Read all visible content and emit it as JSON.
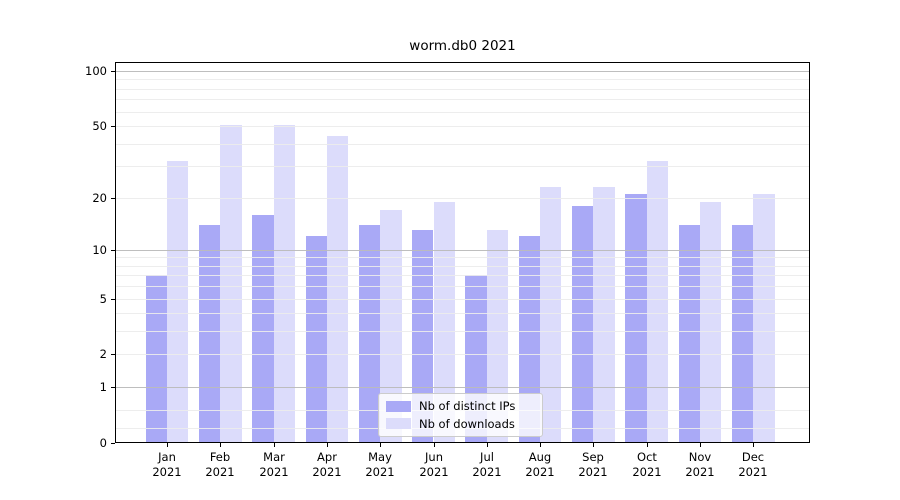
{
  "title": "worm.db0 2021",
  "legend": {
    "position": "lower center",
    "items": [
      {
        "label": "Nb of distinct IPs",
        "color": "#a9a9f6"
      },
      {
        "label": "Nb of downloads",
        "color": "#dcdcfb"
      }
    ]
  },
  "chart_data": {
    "type": "bar",
    "title": "worm.db0 2021",
    "categories": [
      "Jan 2021",
      "Feb 2021",
      "Mar 2021",
      "Apr 2021",
      "May 2021",
      "Jun 2021",
      "Jul 2021",
      "Aug 2021",
      "Sep 2021",
      "Oct 2021",
      "Nov 2021",
      "Dec 2021"
    ],
    "series": [
      {
        "name": "Nb of distinct IPs",
        "color": "#a9a9f6",
        "values": [
          7,
          14,
          16,
          12,
          14,
          13,
          7,
          12,
          18,
          21,
          14,
          14
        ]
      },
      {
        "name": "Nb of downloads",
        "color": "#dcdcfb",
        "values": [
          32,
          51,
          51,
          44,
          17,
          19,
          13,
          23,
          23,
          32,
          19,
          21
        ]
      }
    ],
    "xlabel": "",
    "ylabel": "",
    "yscale": "log(1+x)",
    "ylim": [
      0,
      112
    ],
    "yticks": [
      0,
      1,
      2,
      5,
      10,
      20,
      50,
      100
    ],
    "major_gridlines": [
      1,
      10,
      100
    ],
    "minor_gridlines": [
      0.2,
      0.5,
      2,
      3,
      4,
      5,
      6,
      7,
      8,
      9,
      20,
      30,
      40,
      50,
      60,
      70,
      80,
      90
    ],
    "grid": "on",
    "legend_position": "lower center"
  },
  "colors": {
    "bar_distinct_ips": "#a9a9f6",
    "bar_downloads": "#dcdcfb",
    "grid_major": "#c2c2c2",
    "grid_minor": "#ececec",
    "spine": "#000000",
    "text": "#000000",
    "background": "#ffffff"
  }
}
